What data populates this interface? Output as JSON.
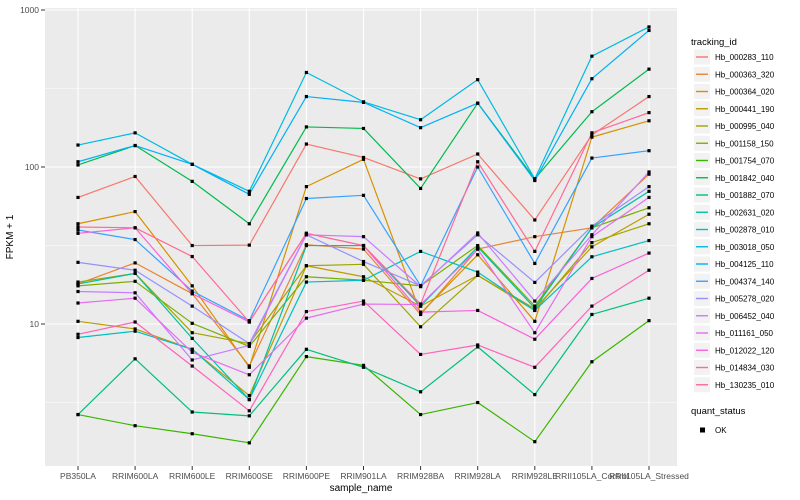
{
  "chart": {
    "y_axis_title": "FPKM + 1",
    "x_axis_title": "sample_name",
    "y_tick_labels": [
      "1000",
      "100",
      "10"
    ],
    "color_legend_title": "tracking_id",
    "shape_legend_title": "quant_status",
    "shape_legend_items": [
      "OK"
    ]
  },
  "style_colors": {
    "panel_bg": "#EBEBEB",
    "grid": "#FFFFFF",
    "legend_key_bg": "#F2F2F2",
    "tick_label": "#4D4D4D",
    "title_text": "#000000",
    "point": "#000000",
    "tick_mark": "#333333"
  },
  "chart_data": {
    "type": "line",
    "title": "",
    "xlabel": "sample_name",
    "ylabel": "FPKM + 1",
    "y_scale": "log10",
    "ylim": [
      1.25,
      1030
    ],
    "y_major_ticks": [
      10,
      100,
      1000
    ],
    "y_minor_ticks": [
      3.162,
      31.62,
      316.2
    ],
    "grid": true,
    "legend_position": "right",
    "point_shape": "square",
    "point_color": "#000000",
    "quant_status": {
      "title": "quant_status",
      "items": [
        {
          "label": "OK",
          "shape": "square",
          "color": "#000000"
        }
      ]
    },
    "x": [
      "PB350LA",
      "RRIM600LA",
      "RRIM600LE",
      "RRIM600SE",
      "RRIM600PE",
      "RRIM901LA",
      "RRIM928BA",
      "RRIM928LA",
      "RRIM928LE",
      "RRII105LA_Control",
      "RRII105LA_Stressed"
    ],
    "series": [
      {
        "name": "Hb_000283_110",
        "color": "#F8766D",
        "values": [
          64,
          87,
          31.6,
          31.8,
          140,
          115,
          84,
          121,
          46,
          160,
          281
        ]
      },
      {
        "name": "Hb_000363_320",
        "color": "#EA8331",
        "values": [
          18,
          24.5,
          15.6,
          5.4,
          32,
          30,
          11.5,
          30,
          36,
          41,
          90
        ]
      },
      {
        "name": "Hb_000364_020",
        "color": "#D89000",
        "values": [
          43.5,
          52,
          17.5,
          5.3,
          75,
          112,
          11.7,
          27.6,
          10.4,
          155,
          197
        ]
      },
      {
        "name": "Hb_000441_190",
        "color": "#C09B00",
        "values": [
          10.4,
          9.3,
          6.9,
          3.5,
          23.5,
          20,
          13,
          20.4,
          12.5,
          31,
          50
        ]
      },
      {
        "name": "Hb_000995_040",
        "color": "#A3A500",
        "values": [
          18.5,
          21,
          8.8,
          7.5,
          23.5,
          24,
          9.6,
          20.4,
          12.2,
          33,
          43.5
        ]
      },
      {
        "name": "Hb_001158_150",
        "color": "#7CAE00",
        "values": [
          17.5,
          18.7,
          10.1,
          7.2,
          20,
          19,
          17.5,
          31.6,
          13,
          41,
          55
        ]
      },
      {
        "name": "Hb_001754_070",
        "color": "#39B600",
        "values": [
          2.65,
          2.25,
          2.0,
          1.75,
          6.2,
          5.45,
          2.65,
          3.16,
          1.78,
          5.75,
          10.5
        ]
      },
      {
        "name": "Hb_001842_040",
        "color": "#00BB4E",
        "values": [
          103,
          137,
          81,
          43.5,
          180,
          176,
          73,
          255,
          84,
          225,
          420
        ]
      },
      {
        "name": "Hb_001882_070",
        "color": "#00BF7D",
        "values": [
          2.65,
          6.0,
          2.75,
          2.6,
          6.9,
          5.3,
          3.7,
          7.15,
          3.55,
          11.5,
          14.6
        ]
      },
      {
        "name": "Hb_002631_020",
        "color": "#00C1A3",
        "values": [
          18,
          21,
          8.1,
          3.3,
          31.6,
          31.6,
          13,
          31,
          12.6,
          41,
          70
        ]
      },
      {
        "name": "Hb_002878_010",
        "color": "#00BFC4",
        "values": [
          8.2,
          9.0,
          6.9,
          3.3,
          18.5,
          19,
          29,
          21.4,
          12.2,
          26.8,
          34
        ]
      },
      {
        "name": "Hb_003018_050",
        "color": "#00BAE0",
        "values": [
          138,
          165,
          104,
          70,
          400,
          260,
          200,
          360,
          84,
          508,
          780
        ]
      },
      {
        "name": "Hb_004125_110",
        "color": "#00B0F6",
        "values": [
          108,
          137,
          104,
          67,
          281,
          258,
          178,
          255,
          82,
          365,
          741
        ]
      },
      {
        "name": "Hb_004374_140",
        "color": "#35A2FF",
        "values": [
          39.7,
          34.5,
          16.2,
          10.5,
          63,
          66,
          17.5,
          100,
          24.3,
          114,
          127
        ]
      },
      {
        "name": "Hb_005278_020",
        "color": "#9590FF",
        "values": [
          24.7,
          22,
          13.0,
          7.5,
          37,
          25,
          17.5,
          37,
          18.4,
          42,
          75
        ]
      },
      {
        "name": "Hb_006452_040",
        "color": "#C77CFF",
        "values": [
          16.1,
          15.8,
          5.9,
          7.3,
          37,
          36,
          17.3,
          38,
          14,
          37,
          93
        ]
      },
      {
        "name": "Hb_011161_050",
        "color": "#E76BF3",
        "values": [
          13.6,
          14.6,
          6.6,
          4.75,
          10.9,
          13.4,
          13.3,
          30,
          8.8,
          36,
          64
        ]
      },
      {
        "name": "Hb_012022_120",
        "color": "#FA62DB",
        "values": [
          37.8,
          41,
          15.6,
          10.3,
          37.8,
          31.6,
          11.9,
          12.2,
          8.0,
          19.5,
          28.3
        ]
      },
      {
        "name": "Hb_014834_030",
        "color": "#FF62BC",
        "values": [
          8.6,
          10.3,
          5.4,
          2.8,
          12,
          14,
          6.4,
          7.35,
          5.3,
          13,
          22
        ]
      },
      {
        "name": "Hb_130235_010",
        "color": "#FF6A98",
        "values": [
          41.5,
          41,
          26.9,
          10.3,
          37.8,
          31.6,
          13.4,
          108,
          29,
          165,
          222
        ]
      }
    ]
  }
}
